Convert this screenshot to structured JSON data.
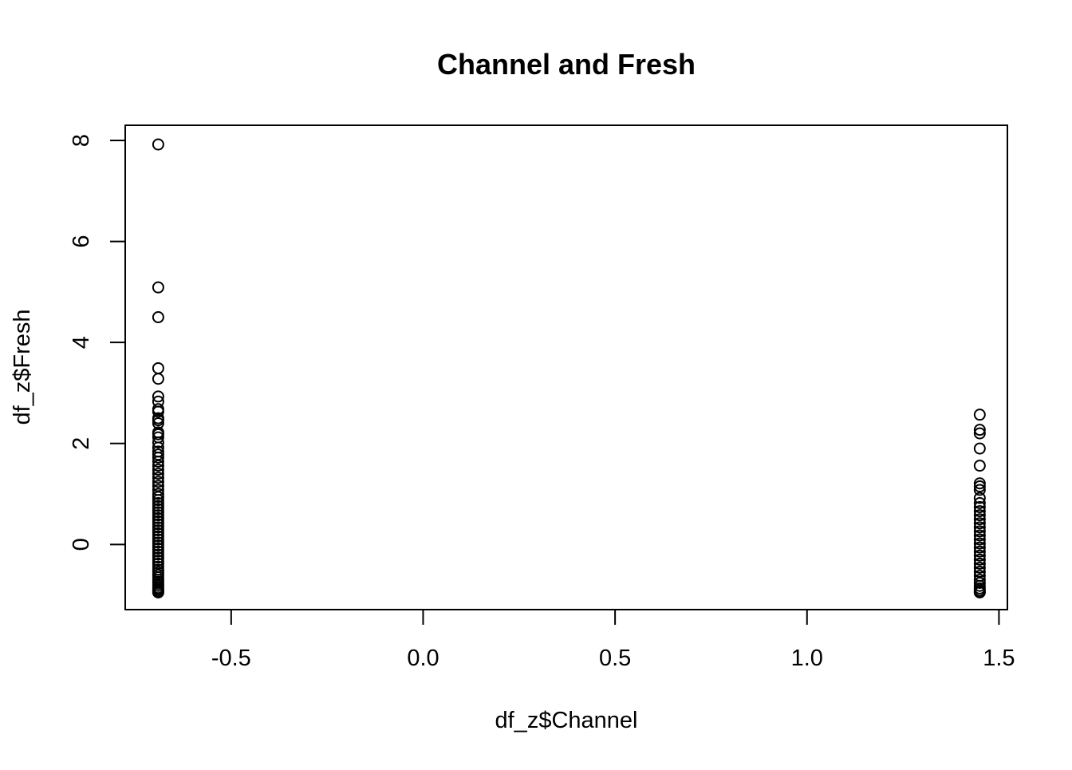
{
  "chart_data": {
    "type": "scatter",
    "title": "Channel and Fresh",
    "xlabel": "df_z$Channel",
    "ylabel": "df_z$Fresh",
    "xlim": [
      -0.776,
      1.522
    ],
    "ylim": [
      -1.29,
      8.3
    ],
    "x_ticks": [
      -0.5,
      0.0,
      0.5,
      1.0,
      1.5
    ],
    "x_tick_labels": [
      "-0.5",
      "0.0",
      "0.5",
      "1.0",
      "1.5"
    ],
    "y_ticks": [
      0,
      2,
      4,
      6,
      8
    ],
    "y_tick_labels": [
      "0",
      "2",
      "4",
      "6",
      "8"
    ],
    "grid": false,
    "marker": "open-circle",
    "colors": {
      "marker_stroke": "#000000",
      "axis": "#000000",
      "background": "#ffffff"
    },
    "series": [
      {
        "x_value": -0.69,
        "y_values": [
          7.92,
          5.09,
          4.5,
          3.49,
          3.28,
          2.93,
          2.83,
          2.68,
          2.63,
          2.5,
          2.46,
          2.4,
          2.22,
          2.18,
          2.12,
          2.02,
          1.92,
          1.84,
          1.78,
          1.72,
          1.64,
          1.56,
          1.48,
          1.4,
          1.32,
          1.24,
          1.16,
          1.08,
          1.0,
          0.94,
          0.88,
          0.82,
          0.76,
          0.7,
          0.64,
          0.58,
          0.52,
          0.46,
          0.4,
          0.34,
          0.28,
          0.22,
          0.16,
          0.1,
          0.04,
          -0.02,
          -0.08,
          -0.14,
          -0.2,
          -0.26,
          -0.32,
          -0.38,
          -0.44,
          -0.5,
          -0.55,
          -0.6,
          -0.65,
          -0.7,
          -0.74,
          -0.78,
          -0.82,
          -0.86,
          -0.89,
          -0.92,
          -0.94,
          -0.95
        ]
      },
      {
        "x_value": 1.45,
        "y_values": [
          2.57,
          2.27,
          2.2,
          1.9,
          1.56,
          1.21,
          1.15,
          1.08,
          0.92,
          0.82,
          0.74,
          0.66,
          0.58,
          0.5,
          0.42,
          0.34,
          0.26,
          0.18,
          0.1,
          0.02,
          -0.06,
          -0.14,
          -0.22,
          -0.3,
          -0.38,
          -0.46,
          -0.54,
          -0.62,
          -0.7,
          -0.76,
          -0.82,
          -0.87,
          -0.91,
          -0.94,
          -0.95
        ]
      }
    ]
  }
}
